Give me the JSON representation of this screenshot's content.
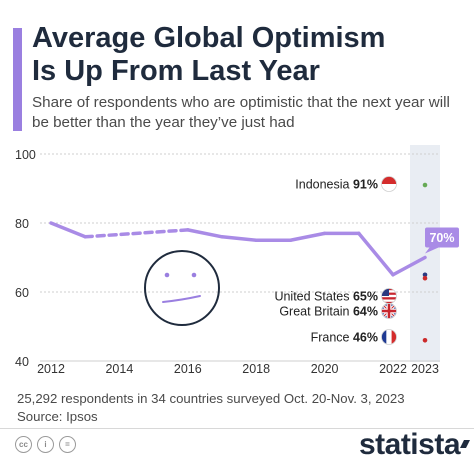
{
  "header": {
    "title": "Average Global Optimism\nIs Up From Last Year",
    "subtitle": "Share of respondents who are optimistic that the next year will be better than the year they’ve just had"
  },
  "chart_data": {
    "type": "line",
    "title": "Average Global Optimism Is Up From Last Year",
    "subtitle": "Share of respondents who are optimistic that the next year will be better than the year they’ve just had",
    "xlabel": "",
    "ylabel": "",
    "ylim": [
      40,
      100
    ],
    "yticks": [
      40,
      60,
      80,
      100
    ],
    "xticks": [
      "2012",
      "2014",
      "2016",
      "2018",
      "2020",
      "2022",
      "2023"
    ],
    "grid": true,
    "series": [
      {
        "values": [
          {
            "x": 2012,
            "y": 80
          },
          {
            "x": 2013,
            "y": 76
          },
          {
            "x": 2016,
            "y": 78
          },
          {
            "x": 2017,
            "y": 76
          },
          {
            "x": 2018,
            "y": 75
          },
          {
            "x": 2019,
            "y": 75
          },
          {
            "x": 2020,
            "y": 77
          },
          {
            "x": 2021,
            "y": 77
          },
          {
            "x": 2022,
            "y": 65
          },
          {
            "x": 2023,
            "y": 70
          }
        ],
        "dashed_segment": [
          2013,
          2016
        ],
        "color": "#a98be6"
      }
    ],
    "callout": {
      "x": 2023,
      "label": "70%"
    },
    "countries": [
      {
        "name": "Indonesia",
        "value": 91,
        "label": "91%",
        "flag": "indonesia-flag",
        "dot_color": "#66aa55"
      },
      {
        "name": "United States",
        "value": 65,
        "label": "65%",
        "flag": "us-flag",
        "dot_color": "#2b3a80"
      },
      {
        "name": "Great Britain",
        "value": 64,
        "label": "64%",
        "flag": "uk-flag",
        "dot_color": "#cc2a2a"
      },
      {
        "name": "France",
        "value": 46,
        "label": "46%",
        "flag": "france-flag",
        "dot_color": "#cc2a2a"
      }
    ]
  },
  "footer": {
    "note": "25,292 respondents in 34 countries surveyed Oct. 20-Nov. 3, 2023",
    "source": "Source: Ipsos",
    "cc": [
      "cc",
      "i",
      "="
    ],
    "logo": "statista"
  },
  "colors": {
    "accent": "#9a7fe0",
    "title": "#1f2b3d",
    "line": "#a98be6",
    "highlight_band": "#e9edf3"
  }
}
